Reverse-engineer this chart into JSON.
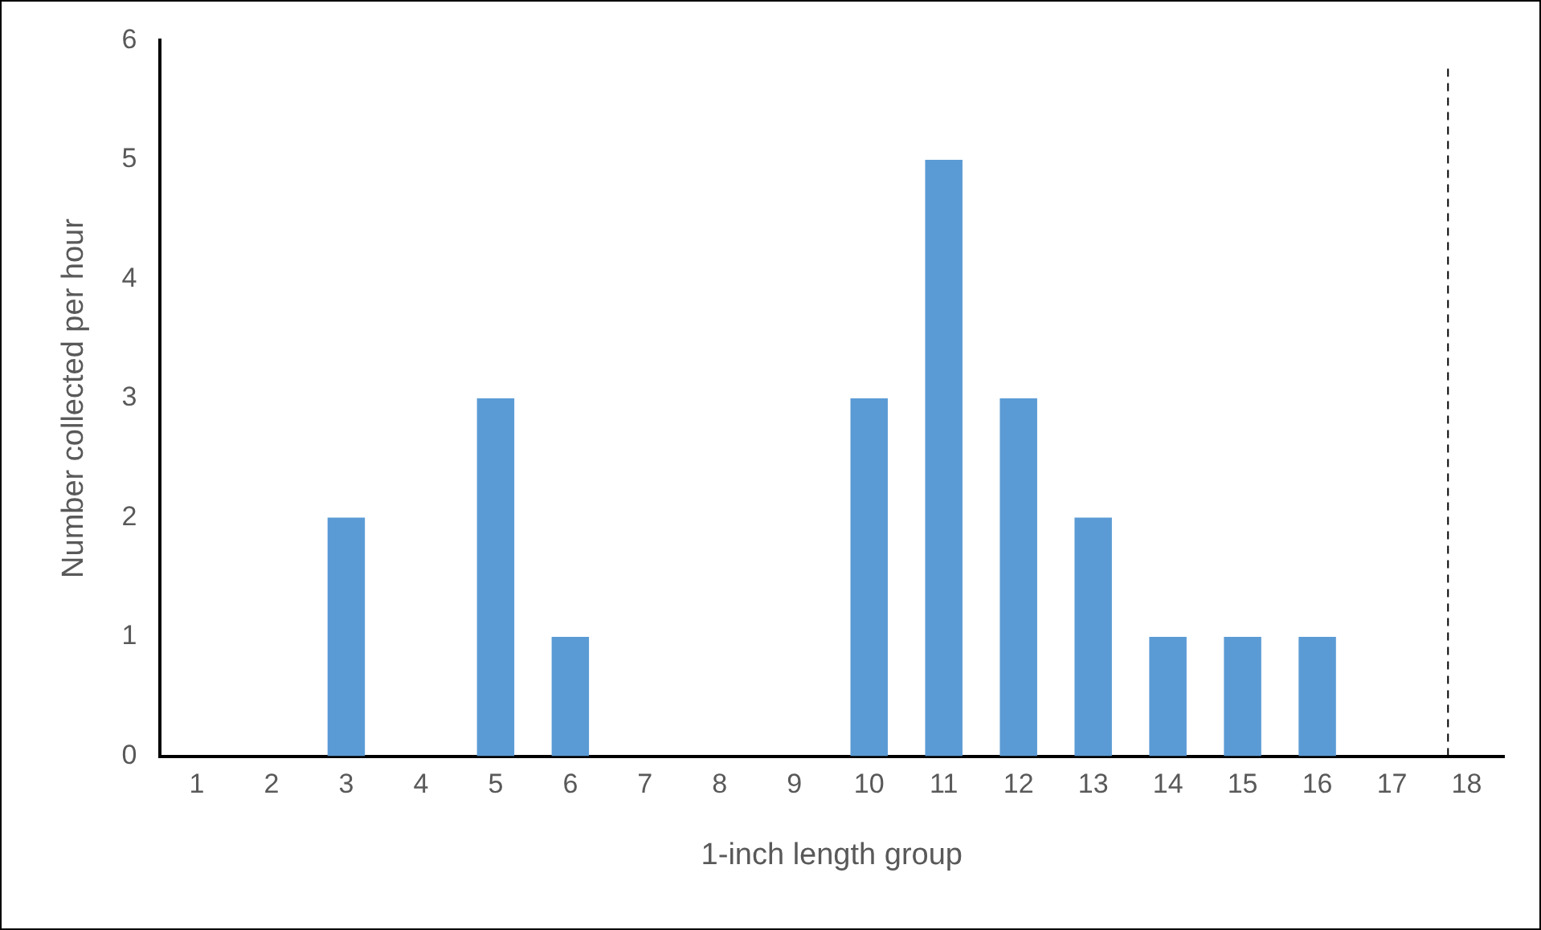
{
  "chart_data": {
    "type": "bar",
    "xlabel": "1-inch length group",
    "ylabel": "Number collected per hour",
    "x": [
      1,
      2,
      3,
      4,
      5,
      6,
      7,
      8,
      9,
      10,
      11,
      12,
      13,
      14,
      15,
      16,
      17,
      18
    ],
    "values": [
      0,
      0,
      2,
      0,
      3,
      1,
      0,
      0,
      0,
      3,
      5,
      3,
      2,
      1,
      1,
      1,
      0,
      0
    ],
    "color": "#5b9bd5",
    "xlim": [
      0.5,
      18.5
    ],
    "xticks": [
      1,
      2,
      3,
      4,
      5,
      6,
      7,
      8,
      9,
      10,
      11,
      12,
      13,
      14,
      15,
      16,
      17,
      18
    ],
    "ylim": [
      0,
      6
    ],
    "yticks": [
      0,
      1,
      2,
      3,
      4,
      5,
      6
    ],
    "grid": false,
    "legend": false,
    "ref_lines": [
      {
        "axis": "x",
        "value": 17.75,
        "color": "#000000",
        "line_style": "dashed"
      }
    ]
  }
}
